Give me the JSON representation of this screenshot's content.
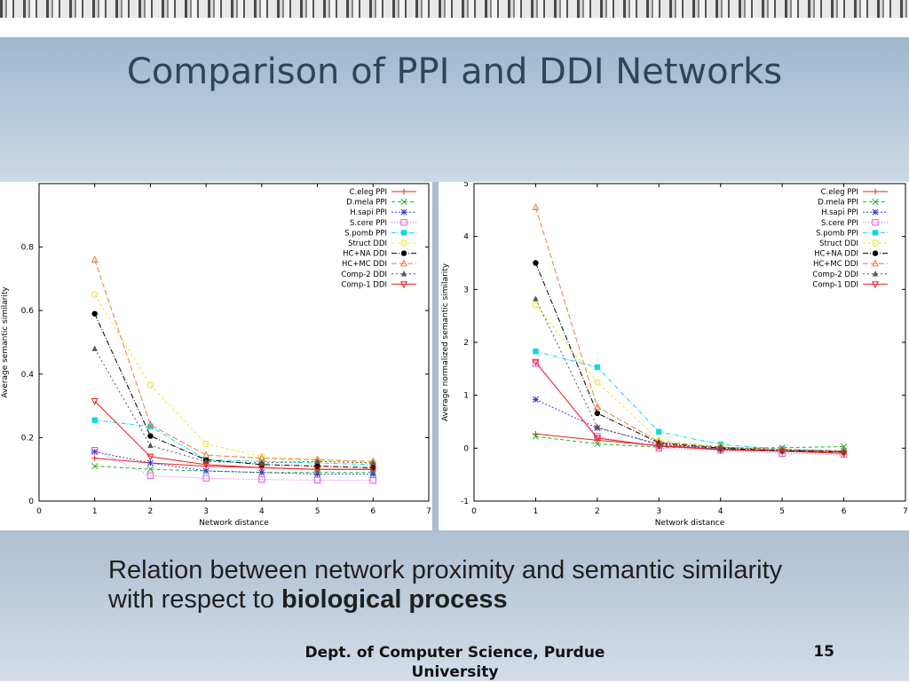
{
  "slide": {
    "title": "Comparison of PPI and DDI Networks",
    "caption_plain": "Relation between network proximity and semantic similarity with respect to ",
    "caption_bold": "biological process",
    "footer_dept": "Dept. of Computer Science, Purdue University",
    "page_number": "15"
  },
  "chart_data": [
    {
      "type": "line",
      "xlabel": "Network distance",
      "ylabel": "Average semantic similarity",
      "xlim": [
        0,
        7
      ],
      "ylim": [
        0,
        1
      ],
      "x_ticks": [
        "0",
        "1",
        "2",
        "3",
        "4",
        "5",
        "6",
        "7"
      ],
      "y_ticks": [
        "0",
        "0.2",
        "0.4",
        "0.6",
        "0.8"
      ],
      "legend_position": "top-right",
      "series": [
        {
          "name": "C.eleg PPI",
          "color": "#e8231f",
          "marker": "plus",
          "x": [
            1,
            2,
            3,
            4,
            5,
            6
          ],
          "values": [
            0.135,
            0.12,
            0.11,
            0.105,
            0.1,
            0.1
          ]
        },
        {
          "name": "D.mela PPI",
          "color": "#22b322",
          "marker": "x",
          "x": [
            1,
            2,
            3,
            4,
            5,
            6
          ],
          "values": [
            0.11,
            0.1,
            0.095,
            0.09,
            0.09,
            0.09
          ]
        },
        {
          "name": "H.sapi PPI",
          "color": "#3a3ae0",
          "marker": "star",
          "x": [
            1,
            2,
            3,
            4,
            5,
            6
          ],
          "values": [
            0.155,
            0.12,
            0.095,
            0.09,
            0.085,
            0.085
          ]
        },
        {
          "name": "S.cere PPI",
          "color": "#e055e0",
          "marker": "square-open",
          "x": [
            1,
            2,
            3,
            4,
            5,
            6
          ],
          "values": [
            0.16,
            0.08,
            0.072,
            0.068,
            0.066,
            0.065
          ]
        },
        {
          "name": "S.pomb PPI",
          "color": "#10d8e8",
          "marker": "square",
          "x": [
            1,
            2,
            3,
            4,
            5,
            6
          ],
          "values": [
            0.255,
            0.235,
            0.13,
            0.125,
            0.12,
            0.115
          ]
        },
        {
          "name": "Struct DDI",
          "color": "#f0e02a",
          "marker": "circle-open",
          "x": [
            1,
            2,
            3,
            4,
            5,
            6
          ],
          "values": [
            0.65,
            0.365,
            0.18,
            0.14,
            0.13,
            0.12
          ]
        },
        {
          "name": "HC+NA DDI",
          "color": "#000000",
          "marker": "circle",
          "x": [
            1,
            2,
            3,
            4,
            5,
            6
          ],
          "values": [
            0.59,
            0.205,
            0.13,
            0.115,
            0.11,
            0.105
          ]
        },
        {
          "name": "HC+MC DDI",
          "color": "#f07a3a",
          "marker": "triangle-open",
          "x": [
            1,
            2,
            3,
            4,
            5,
            6
          ],
          "values": [
            0.76,
            0.24,
            0.145,
            0.135,
            0.13,
            0.125
          ]
        },
        {
          "name": "Comp-2 DDI",
          "color": "#555555",
          "marker": "triangle",
          "x": [
            1,
            2,
            3,
            4,
            5,
            6
          ],
          "values": [
            0.48,
            0.175,
            0.125,
            0.12,
            0.125,
            0.12
          ]
        },
        {
          "name": "Comp-1 DDI",
          "color": "#e8231f",
          "marker": "triangle-down-open",
          "x": [
            1,
            2,
            3,
            4,
            5,
            6
          ],
          "values": [
            0.315,
            0.14,
            0.115,
            0.105,
            0.1,
            0.1
          ]
        }
      ]
    },
    {
      "type": "line",
      "xlabel": "Network distance",
      "ylabel": "Average normalized semantic similarity",
      "xlim": [
        0,
        7
      ],
      "ylim": [
        -1,
        5
      ],
      "x_ticks": [
        "0",
        "1",
        "2",
        "3",
        "4",
        "5",
        "6",
        "7"
      ],
      "y_ticks": [
        "-1",
        "0",
        "1",
        "2",
        "3",
        "4",
        "5"
      ],
      "legend_position": "top-right",
      "series": [
        {
          "name": "C.eleg PPI",
          "color": "#e8231f",
          "marker": "plus",
          "x": [
            1,
            2,
            3,
            4,
            5,
            6
          ],
          "values": [
            0.27,
            0.15,
            0.05,
            -0.02,
            -0.05,
            -0.07
          ]
        },
        {
          "name": "D.mela PPI",
          "color": "#22b322",
          "marker": "x",
          "x": [
            1,
            2,
            3,
            4,
            5,
            6
          ],
          "values": [
            0.22,
            0.08,
            0.02,
            0.0,
            0.01,
            0.03
          ]
        },
        {
          "name": "H.sapi PPI",
          "color": "#3a3ae0",
          "marker": "star",
          "x": [
            1,
            2,
            3,
            4,
            5,
            6
          ],
          "values": [
            0.92,
            0.38,
            0.08,
            -0.02,
            -0.04,
            -0.06
          ]
        },
        {
          "name": "S.cere PPI",
          "color": "#e055e0",
          "marker": "square-open",
          "x": [
            1,
            2,
            3,
            4,
            5,
            6
          ],
          "values": [
            1.6,
            0.22,
            0.0,
            -0.04,
            -0.1,
            -0.12
          ]
        },
        {
          "name": "S.pomb PPI",
          "color": "#10d8e8",
          "marker": "square",
          "x": [
            1,
            2,
            3,
            4,
            5,
            6
          ],
          "values": [
            1.83,
            1.53,
            0.31,
            0.07,
            -0.02,
            -0.06
          ]
        },
        {
          "name": "Struct DDI",
          "color": "#f0e02a",
          "marker": "circle-open",
          "x": [
            1,
            2,
            3,
            4,
            5,
            6
          ],
          "values": [
            2.7,
            1.25,
            0.15,
            0.03,
            -0.05,
            -0.08
          ]
        },
        {
          "name": "HC+NA DDI",
          "color": "#000000",
          "marker": "circle",
          "x": [
            1,
            2,
            3,
            4,
            5,
            6
          ],
          "values": [
            3.5,
            0.66,
            0.1,
            0.0,
            -0.05,
            -0.07
          ]
        },
        {
          "name": "HC+MC DDI",
          "color": "#f07a3a",
          "marker": "triangle-open",
          "x": [
            1,
            2,
            3,
            4,
            5,
            6
          ],
          "values": [
            4.55,
            0.78,
            0.12,
            0.02,
            -0.02,
            -0.05
          ]
        },
        {
          "name": "Comp-2 DDI",
          "color": "#555555",
          "marker": "triangle",
          "x": [
            1,
            2,
            3,
            4,
            5,
            6
          ],
          "values": [
            2.82,
            0.4,
            0.06,
            0.02,
            -0.03,
            -0.06
          ]
        },
        {
          "name": "Comp-1 DDI",
          "color": "#e8231f",
          "marker": "triangle-down-open",
          "x": [
            1,
            2,
            3,
            4,
            5,
            6
          ],
          "values": [
            1.63,
            0.19,
            0.04,
            -0.03,
            -0.06,
            -0.1
          ]
        }
      ]
    }
  ]
}
